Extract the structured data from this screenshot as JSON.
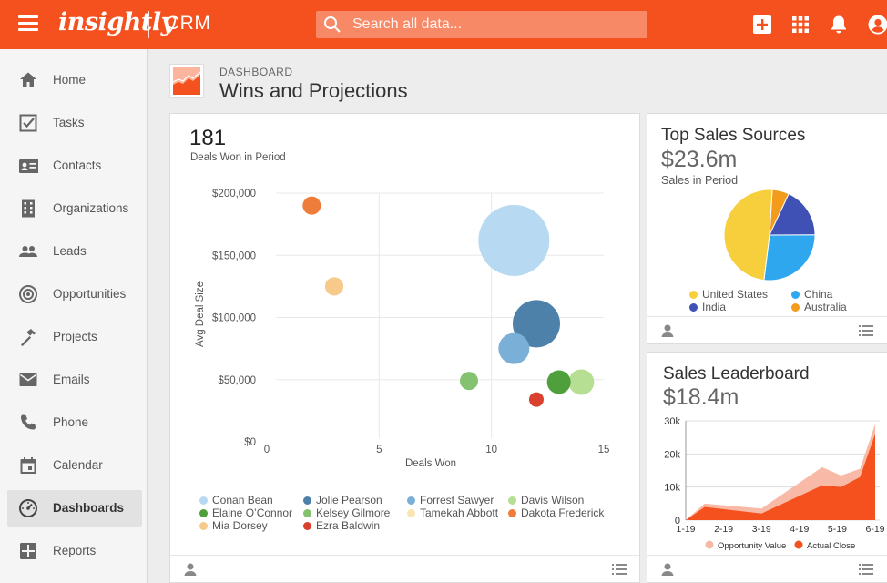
{
  "app": {
    "logo": "insightly",
    "name": "CRM"
  },
  "search": {
    "placeholder": "Search all data..."
  },
  "sidebar": {
    "items": [
      {
        "label": "Home",
        "icon": "home-icon"
      },
      {
        "label": "Tasks",
        "icon": "checkbox-icon"
      },
      {
        "label": "Contacts",
        "icon": "contact-card-icon"
      },
      {
        "label": "Organizations",
        "icon": "building-icon"
      },
      {
        "label": "Leads",
        "icon": "people-icon"
      },
      {
        "label": "Opportunities",
        "icon": "target-icon"
      },
      {
        "label": "Projects",
        "icon": "hammer-icon"
      },
      {
        "label": "Emails",
        "icon": "envelope-icon"
      },
      {
        "label": "Phone",
        "icon": "phone-icon"
      },
      {
        "label": "Calendar",
        "icon": "calendar-icon"
      },
      {
        "label": "Dashboards",
        "icon": "dashboard-gauge-icon",
        "active": true
      },
      {
        "label": "Reports",
        "icon": "plus-box-icon"
      }
    ]
  },
  "header": {
    "crumb": "DASHBOARD",
    "title": "Wins and Projections"
  },
  "main_card": {
    "value": "181",
    "label": "Deals Won in Period"
  },
  "sources_card": {
    "title": "Top Sales Sources",
    "value": "$23.6m",
    "label": "Sales in Period"
  },
  "leaderboard_card": {
    "title": "Sales Leaderboard",
    "value": "$18.4m"
  },
  "colors": {
    "brand": "#f4511e"
  },
  "chart_data": [
    {
      "type": "scatter",
      "xlabel": "Deals Won",
      "ylabel": "Avg Deal Size",
      "xlim": [
        0,
        15
      ],
      "ylim": [
        0,
        200000
      ],
      "x_ticks": [
        "0",
        "5",
        "10",
        "15"
      ],
      "y_ticks": [
        "$0",
        "$50,000",
        "$100,000",
        "$150,000",
        "$200,000"
      ],
      "series": [
        {
          "name": "Conan Bean",
          "x": 11,
          "y": 162000,
          "size": 3.9,
          "color": "#b8d9f2"
        },
        {
          "name": "Jolie Pearson",
          "x": 12,
          "y": 95000,
          "size": 2.6,
          "color": "#4e81aa"
        },
        {
          "name": "Forrest Sawyer",
          "x": 11,
          "y": 75000,
          "size": 1.7,
          "color": "#7ab0d8"
        },
        {
          "name": "Davis Wilson",
          "x": 14,
          "y": 48000,
          "size": 1.4,
          "color": "#b6df94"
        },
        {
          "name": "Elaine O’Connor",
          "x": 13,
          "y": 48000,
          "size": 1.3,
          "color": "#4f9f3d"
        },
        {
          "name": "Kelsey Gilmore",
          "x": 9,
          "y": 49000,
          "size": 1.0,
          "color": "#84c270"
        },
        {
          "name": "Tamekah Abbott",
          "x": 3,
          "y": 125000,
          "size": 1.0,
          "color": "#fbe4b0"
        },
        {
          "name": "Dakota Frederick",
          "x": 2,
          "y": 190000,
          "size": 1.0,
          "color": "#ee7d3b"
        },
        {
          "name": "Mia Dorsey",
          "x": 3,
          "y": 125000,
          "size": 1.0,
          "color": "#f7c98a"
        },
        {
          "name": "Ezra Baldwin",
          "x": 12,
          "y": 34000,
          "size": 0.8,
          "color": "#d9412e"
        }
      ],
      "legend": [
        "Conan Bean",
        "Jolie Pearson",
        "Forrest Sawyer",
        "Davis Wilson",
        "Elaine O’Connor",
        "Kelsey Gilmore",
        "Tamekah Abbott",
        "Dakota Frederick",
        "Mia Dorsey",
        "Ezra Baldwin"
      ],
      "legend_colors": [
        "#b8d9f2",
        "#4e81aa",
        "#7ab0d8",
        "#b6df94",
        "#4f9f3d",
        "#84c270",
        "#fbe4b0",
        "#ee7d3b",
        "#f7c98a",
        "#d9412e"
      ]
    },
    {
      "type": "pie",
      "labels": [
        "United States",
        "India",
        "China",
        "Australia"
      ],
      "values": [
        49,
        18,
        27,
        6
      ],
      "colors": [
        "#f7cf3c",
        "#3f51b5",
        "#2ea7ef",
        "#f39c1b"
      ],
      "legend": "bottom"
    },
    {
      "type": "area",
      "x": [
        "1-19",
        "2-19",
        "3-19",
        "4-19",
        "5-19",
        "6-19"
      ],
      "y_ticks": [
        "0",
        "10k",
        "20k",
        "30k"
      ],
      "ylim": [
        0,
        30000
      ],
      "series": [
        {
          "name": "Opportunity Value",
          "color": "#f8b9a6",
          "points": [
            [
              0,
              0
            ],
            [
              0.5,
              5000
            ],
            [
              2,
              3500
            ],
            [
              3.6,
              16000
            ],
            [
              4.1,
              13500
            ],
            [
              4.6,
              15500
            ],
            [
              5,
              29000
            ]
          ]
        },
        {
          "name": "Actual Close",
          "color": "#f4511e",
          "points": [
            [
              0,
              0
            ],
            [
              0.5,
              4000
            ],
            [
              2,
              2000
            ],
            [
              3.6,
              10500
            ],
            [
              4.1,
              10000
            ],
            [
              4.6,
              13000
            ],
            [
              5,
              26000
            ]
          ]
        }
      ]
    }
  ]
}
